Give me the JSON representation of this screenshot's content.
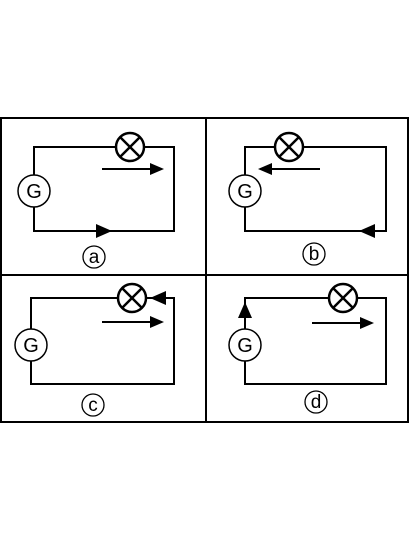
{
  "colors": {
    "line": "#000000",
    "background": "#ffffff"
  },
  "panels": [
    {
      "id": "a",
      "label": "a",
      "generator_label": "G"
    },
    {
      "id": "b",
      "label": "b",
      "generator_label": "G"
    },
    {
      "id": "c",
      "label": "c",
      "generator_label": "G"
    },
    {
      "id": "d",
      "label": "d",
      "generator_label": "G"
    }
  ]
}
